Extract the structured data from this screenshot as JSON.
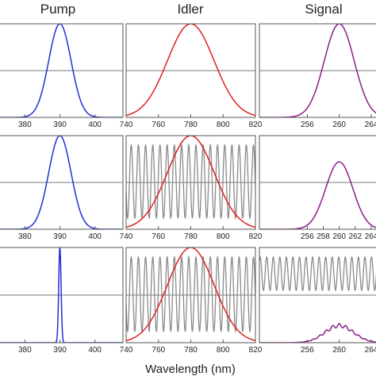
{
  "chart_data": {
    "type": "line",
    "xlabel": "Wavelength (nm)",
    "columns": [
      {
        "title": "Pump",
        "xlim": [
          372,
          408
        ],
        "ticks": [
          380,
          390,
          400
        ]
      },
      {
        "title": "Idler",
        "xlim": [
          740,
          820
        ],
        "ticks": [
          740,
          760,
          780,
          800,
          820
        ]
      },
      {
        "title": "Signal",
        "xlim": [
          250,
          265
        ],
        "ticks_by_row": [
          [
            256,
            260,
            264
          ],
          [
            256,
            258,
            260,
            262,
            264
          ],
          [
            256,
            260,
            264
          ]
        ]
      }
    ],
    "colors": {
      "pump": "#1f2fd6",
      "idler": "#e0201c",
      "signal": "#8b1a8e",
      "filter": "#8a8a8a",
      "frame": "#555555",
      "midline": "#777777"
    },
    "panels": [
      {
        "row": 1,
        "column": "Pump",
        "series": [
          {
            "kind": "gaussian",
            "center": 390,
            "fwhm": 7.5,
            "amplitude": 1.0,
            "color": "#1f2fd6"
          }
        ]
      },
      {
        "row": 1,
        "column": "Idler",
        "series": [
          {
            "kind": "gaussian",
            "center": 780,
            "fwhm": 34,
            "amplitude": 1.0,
            "color": "#e0201c"
          }
        ]
      },
      {
        "row": 1,
        "column": "Signal",
        "series": [
          {
            "kind": "gaussian",
            "center": 260,
            "fwhm": 4.4,
            "amplitude": 1.0,
            "color": "#8b1a8e"
          }
        ]
      },
      {
        "row": 2,
        "column": "Pump",
        "series": [
          {
            "kind": "gaussian",
            "center": 390,
            "fwhm": 7.5,
            "amplitude": 1.0,
            "color": "#1f2fd6"
          }
        ]
      },
      {
        "row": 2,
        "column": "Idler",
        "series": [
          {
            "kind": "sinusoid",
            "period": 4.45,
            "phase": 0,
            "low": 0.12,
            "high": 0.9,
            "color": "#8a8a8a"
          },
          {
            "kind": "gaussian",
            "center": 780,
            "fwhm": 34,
            "amplitude": 1.0,
            "color": "#e0201c"
          }
        ]
      },
      {
        "row": 2,
        "column": "Signal",
        "series": [
          {
            "kind": "gaussian",
            "center": 260,
            "fwhm": 4.0,
            "amplitude": 0.72,
            "color": "#8b1a8e"
          }
        ]
      },
      {
        "row": 3,
        "column": "Pump",
        "series": [
          {
            "kind": "gaussian",
            "center": 390,
            "fwhm": 0.8,
            "amplitude": 1.0,
            "color": "#1f2fd6"
          }
        ]
      },
      {
        "row": 3,
        "column": "Idler",
        "series": [
          {
            "kind": "sinusoid",
            "period": 4.45,
            "phase": 0,
            "low": 0.12,
            "high": 0.9,
            "color": "#8a8a8a"
          },
          {
            "kind": "gaussian",
            "center": 780,
            "fwhm": 34,
            "amplitude": 1.0,
            "color": "#e0201c"
          }
        ]
      },
      {
        "row": 3,
        "column": "Signal",
        "series": [
          {
            "kind": "sinusoid",
            "period": 0.82,
            "phase": 0,
            "low": 0.55,
            "high": 0.9,
            "color": "#8a8a8a"
          },
          {
            "kind": "modulated",
            "center": 260,
            "fwhm": 4.2,
            "amplitude": 0.2,
            "period": 0.82,
            "depth": 0.2,
            "color": "#8b1a8e"
          }
        ]
      }
    ]
  }
}
